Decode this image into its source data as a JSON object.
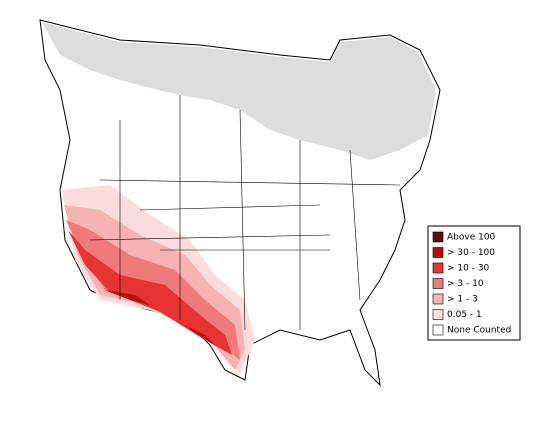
{
  "legend": {
    "items": [
      {
        "label": "Above 100",
        "color": "#5c0b0b"
      },
      {
        "label": "> 30 - 100",
        "color": "#b50e0e"
      },
      {
        "label": "> 10 - 30",
        "color": "#e63333"
      },
      {
        "label": "> 3 - 10",
        "color": "#f07a7a"
      },
      {
        "label": "> 1 - 3",
        "color": "#f7b2b2"
      },
      {
        "label": "0.05 - 1",
        "color": "#fcdcdc"
      },
      {
        "label": "None Counted",
        "color": "#ffffff"
      }
    ]
  }
}
